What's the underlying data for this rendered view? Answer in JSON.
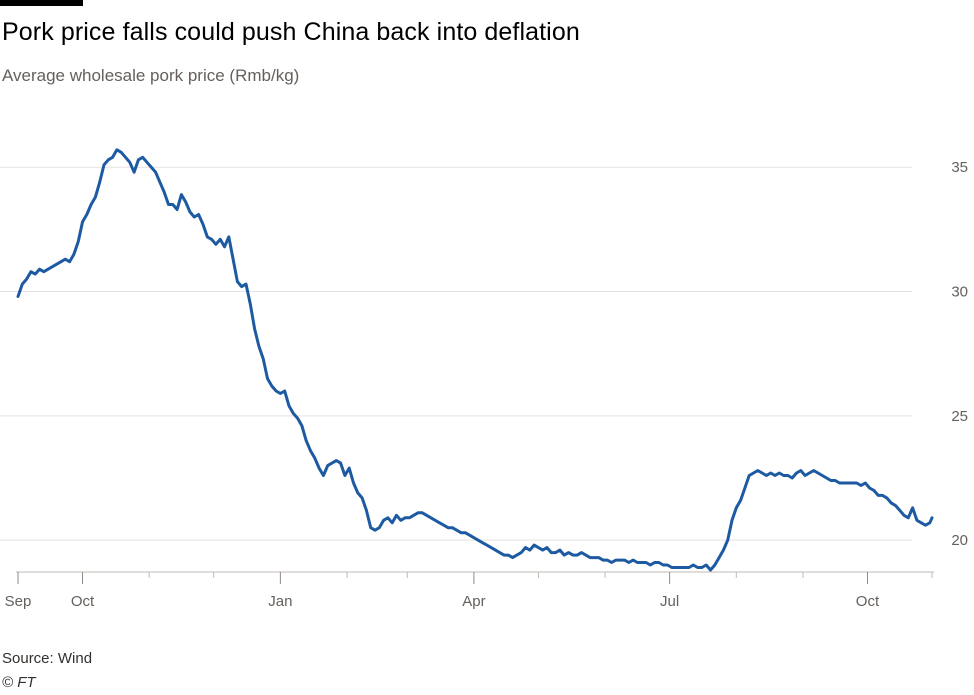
{
  "chart_data": {
    "type": "line",
    "title": "Pork price falls could push China back into deflation",
    "subtitle": "Average wholesale pork price (Rmb/kg)",
    "xlabel": "",
    "ylabel": "Rmb/kg",
    "ylim": [
      18.8,
      36.9
    ],
    "yticks": [
      20,
      25,
      30,
      35
    ],
    "y_axis_side": "right",
    "grid": true,
    "x_ticks_major": [
      {
        "label": "Sep",
        "day": 0
      },
      {
        "label": "Oct",
        "day": 30
      },
      {
        "label": "Jan",
        "day": 122
      },
      {
        "label": "Apr",
        "day": 212
      },
      {
        "label": "Jul",
        "day": 303
      },
      {
        "label": "Oct",
        "day": 395
      }
    ],
    "x_ticks_minor_days": [
      61,
      91,
      153,
      181,
      242,
      273,
      334,
      365,
      425
    ],
    "x_range_days": [
      0,
      425
    ],
    "series": [
      {
        "name": "Average wholesale pork price",
        "color": "#1d5aa1",
        "points": [
          [
            0,
            29.8
          ],
          [
            2,
            30.3
          ],
          [
            4,
            30.5
          ],
          [
            6,
            30.8
          ],
          [
            8,
            30.7
          ],
          [
            10,
            30.9
          ],
          [
            12,
            30.8
          ],
          [
            14,
            30.9
          ],
          [
            16,
            31.0
          ],
          [
            18,
            31.1
          ],
          [
            20,
            31.2
          ],
          [
            22,
            31.3
          ],
          [
            24,
            31.2
          ],
          [
            26,
            31.5
          ],
          [
            28,
            32.0
          ],
          [
            30,
            32.8
          ],
          [
            32,
            33.1
          ],
          [
            34,
            33.5
          ],
          [
            36,
            33.8
          ],
          [
            38,
            34.4
          ],
          [
            40,
            35.1
          ],
          [
            42,
            35.3
          ],
          [
            44,
            35.4
          ],
          [
            46,
            35.7
          ],
          [
            48,
            35.6
          ],
          [
            50,
            35.4
          ],
          [
            52,
            35.2
          ],
          [
            54,
            34.8
          ],
          [
            56,
            35.3
          ],
          [
            58,
            35.4
          ],
          [
            60,
            35.2
          ],
          [
            62,
            35.0
          ],
          [
            64,
            34.8
          ],
          [
            66,
            34.4
          ],
          [
            68,
            34.0
          ],
          [
            70,
            33.5
          ],
          [
            72,
            33.5
          ],
          [
            74,
            33.3
          ],
          [
            76,
            33.9
          ],
          [
            78,
            33.6
          ],
          [
            80,
            33.2
          ],
          [
            82,
            33.0
          ],
          [
            84,
            33.1
          ],
          [
            86,
            32.7
          ],
          [
            88,
            32.2
          ],
          [
            90,
            32.1
          ],
          [
            92,
            31.9
          ],
          [
            94,
            32.1
          ],
          [
            96,
            31.8
          ],
          [
            98,
            32.2
          ],
          [
            100,
            31.3
          ],
          [
            102,
            30.4
          ],
          [
            104,
            30.2
          ],
          [
            106,
            30.3
          ],
          [
            108,
            29.5
          ],
          [
            110,
            28.5
          ],
          [
            112,
            27.8
          ],
          [
            114,
            27.3
          ],
          [
            116,
            26.5
          ],
          [
            118,
            26.2
          ],
          [
            120,
            26.0
          ],
          [
            122,
            25.9
          ],
          [
            124,
            26.0
          ],
          [
            126,
            25.4
          ],
          [
            128,
            25.1
          ],
          [
            130,
            24.9
          ],
          [
            132,
            24.6
          ],
          [
            134,
            24.0
          ],
          [
            136,
            23.6
          ],
          [
            138,
            23.3
          ],
          [
            140,
            22.9
          ],
          [
            142,
            22.6
          ],
          [
            144,
            23.0
          ],
          [
            146,
            23.1
          ],
          [
            148,
            23.2
          ],
          [
            150,
            23.1
          ],
          [
            152,
            22.6
          ],
          [
            154,
            22.9
          ],
          [
            156,
            22.3
          ],
          [
            158,
            21.9
          ],
          [
            160,
            21.7
          ],
          [
            162,
            21.2
          ],
          [
            164,
            20.5
          ],
          [
            166,
            20.4
          ],
          [
            168,
            20.5
          ],
          [
            170,
            20.8
          ],
          [
            172,
            20.9
          ],
          [
            174,
            20.7
          ],
          [
            176,
            21.0
          ],
          [
            178,
            20.8
          ],
          [
            180,
            20.9
          ],
          [
            182,
            20.9
          ],
          [
            184,
            21.0
          ],
          [
            186,
            21.1
          ],
          [
            188,
            21.1
          ],
          [
            190,
            21.0
          ],
          [
            192,
            20.9
          ],
          [
            194,
            20.8
          ],
          [
            196,
            20.7
          ],
          [
            198,
            20.6
          ],
          [
            200,
            20.5
          ],
          [
            202,
            20.5
          ],
          [
            204,
            20.4
          ],
          [
            206,
            20.3
          ],
          [
            208,
            20.3
          ],
          [
            210,
            20.2
          ],
          [
            212,
            20.1
          ],
          [
            214,
            20.0
          ],
          [
            216,
            19.9
          ],
          [
            218,
            19.8
          ],
          [
            220,
            19.7
          ],
          [
            222,
            19.6
          ],
          [
            224,
            19.5
          ],
          [
            226,
            19.4
          ],
          [
            228,
            19.4
          ],
          [
            230,
            19.3
          ],
          [
            232,
            19.4
          ],
          [
            234,
            19.5
          ],
          [
            236,
            19.7
          ],
          [
            238,
            19.6
          ],
          [
            240,
            19.8
          ],
          [
            242,
            19.7
          ],
          [
            244,
            19.6
          ],
          [
            246,
            19.7
          ],
          [
            248,
            19.5
          ],
          [
            250,
            19.5
          ],
          [
            252,
            19.6
          ],
          [
            254,
            19.4
          ],
          [
            256,
            19.5
          ],
          [
            258,
            19.4
          ],
          [
            260,
            19.4
          ],
          [
            262,
            19.5
          ],
          [
            264,
            19.4
          ],
          [
            266,
            19.3
          ],
          [
            268,
            19.3
          ],
          [
            270,
            19.3
          ],
          [
            272,
            19.2
          ],
          [
            274,
            19.2
          ],
          [
            276,
            19.1
          ],
          [
            278,
            19.2
          ],
          [
            280,
            19.2
          ],
          [
            282,
            19.2
          ],
          [
            284,
            19.1
          ],
          [
            286,
            19.2
          ],
          [
            288,
            19.1
          ],
          [
            290,
            19.1
          ],
          [
            292,
            19.1
          ],
          [
            294,
            19.0
          ],
          [
            296,
            19.1
          ],
          [
            298,
            19.1
          ],
          [
            300,
            19.0
          ],
          [
            302,
            19.0
          ],
          [
            304,
            18.9
          ],
          [
            306,
            18.9
          ],
          [
            308,
            18.9
          ],
          [
            310,
            18.9
          ],
          [
            312,
            18.9
          ],
          [
            314,
            19.0
          ],
          [
            316,
            18.9
          ],
          [
            318,
            18.9
          ],
          [
            320,
            19.0
          ],
          [
            322,
            18.8
          ],
          [
            324,
            19.0
          ],
          [
            326,
            19.3
          ],
          [
            328,
            19.6
          ],
          [
            330,
            20.0
          ],
          [
            332,
            20.8
          ],
          [
            334,
            21.3
          ],
          [
            336,
            21.6
          ],
          [
            338,
            22.1
          ],
          [
            340,
            22.6
          ],
          [
            342,
            22.7
          ],
          [
            344,
            22.8
          ],
          [
            346,
            22.7
          ],
          [
            348,
            22.6
          ],
          [
            350,
            22.7
          ],
          [
            352,
            22.6
          ],
          [
            354,
            22.7
          ],
          [
            356,
            22.6
          ],
          [
            358,
            22.6
          ],
          [
            360,
            22.5
          ],
          [
            362,
            22.7
          ],
          [
            364,
            22.8
          ],
          [
            366,
            22.6
          ],
          [
            368,
            22.7
          ],
          [
            370,
            22.8
          ],
          [
            372,
            22.7
          ],
          [
            374,
            22.6
          ],
          [
            376,
            22.5
          ],
          [
            378,
            22.4
          ],
          [
            380,
            22.4
          ],
          [
            382,
            22.3
          ],
          [
            384,
            22.3
          ],
          [
            386,
            22.3
          ],
          [
            388,
            22.3
          ],
          [
            390,
            22.3
          ],
          [
            392,
            22.2
          ],
          [
            394,
            22.3
          ],
          [
            396,
            22.1
          ],
          [
            398,
            22.0
          ],
          [
            400,
            21.8
          ],
          [
            402,
            21.8
          ],
          [
            404,
            21.7
          ],
          [
            406,
            21.5
          ],
          [
            408,
            21.4
          ],
          [
            410,
            21.2
          ],
          [
            412,
            21.0
          ],
          [
            414,
            20.9
          ],
          [
            416,
            21.3
          ],
          [
            418,
            20.8
          ],
          [
            420,
            20.7
          ],
          [
            422,
            20.6
          ],
          [
            424,
            20.7
          ],
          [
            425,
            20.9
          ]
        ]
      }
    ]
  },
  "footer": {
    "source": "Source: Wind",
    "copyright": "© FT"
  }
}
